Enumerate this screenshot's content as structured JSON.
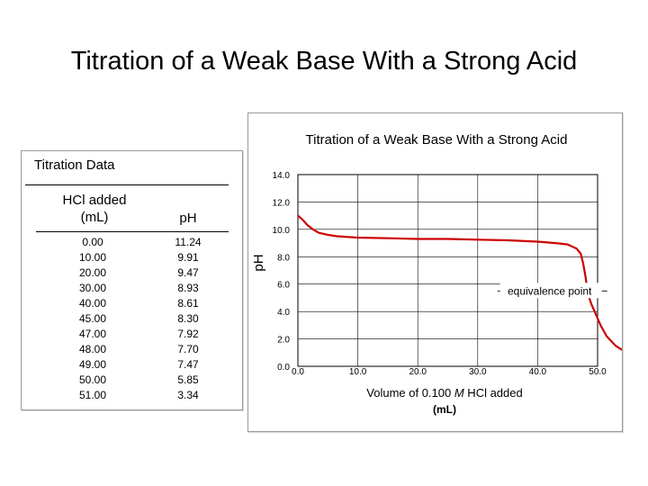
{
  "slide": {
    "title": "Titration of a Weak Base With a Strong Acid"
  },
  "table": {
    "caption": "Titration Data",
    "headers": {
      "hcl": [
        "HCl added",
        "(mL)"
      ],
      "ph": "pH"
    },
    "hcl_added": [
      "0.00",
      "10.00",
      "20.00",
      "30.00",
      "40.00",
      "45.00",
      "47.00",
      "48.00",
      "49.00",
      "50.00",
      "51.00"
    ],
    "ph": [
      "11.24",
      "9.91",
      "9.47",
      "8.93",
      "8.61",
      "8.30",
      "7.92",
      "7.70",
      "7.47",
      "5.85",
      "3.34"
    ]
  },
  "chart_data": {
    "type": "line",
    "title": "Titration of a Weak Base With a Strong Acid",
    "xlabel_prefix": "Volume of 0.100 ",
    "xlabel_italic": "M",
    "xlabel_suffix": " HCl added",
    "xlabel_unit": "(mL)",
    "ylabel": "pH",
    "xlim": [
      0,
      50
    ],
    "ylim": [
      0,
      14
    ],
    "x_ticks": [
      0,
      10,
      20,
      30,
      40,
      50
    ],
    "x_tick_labels": [
      "0.0",
      "10.0",
      "20.0",
      "30.0",
      "40.0",
      "50.0"
    ],
    "y_ticks": [
      0,
      2,
      4,
      6,
      8,
      10,
      12,
      14
    ],
    "y_tick_labels": [
      "0.0",
      "2.0",
      "4.0",
      "6.0",
      "8.0",
      "10.0",
      "12.0",
      "14.0"
    ],
    "grid": true,
    "line_color": "#cc0000",
    "series": [
      {
        "x": [
          0.0,
          0.8,
          1.6,
          2.5,
          3.5,
          5.0,
          6.5,
          8.0,
          10.0,
          15.0,
          20.0,
          25.0,
          30.0,
          35.0,
          40.0,
          43.0,
          45.0,
          46.5,
          47.2,
          47.6,
          48.0,
          48.3,
          48.6,
          49.0,
          49.5,
          50.5,
          51.5,
          53.0,
          54.8
        ],
        "y": [
          11.0,
          10.7,
          10.3,
          10.0,
          9.75,
          9.6,
          9.5,
          9.45,
          9.4,
          9.35,
          9.3,
          9.3,
          9.25,
          9.2,
          9.1,
          9.0,
          8.9,
          8.6,
          8.2,
          7.5,
          6.5,
          5.5,
          5.0,
          4.5,
          4.0,
          3.0,
          2.2,
          1.5,
          1.0
        ]
      }
    ],
    "annotation": "equivalence point",
    "annotation_x": 48.3,
    "annotation_y": 5.5
  }
}
